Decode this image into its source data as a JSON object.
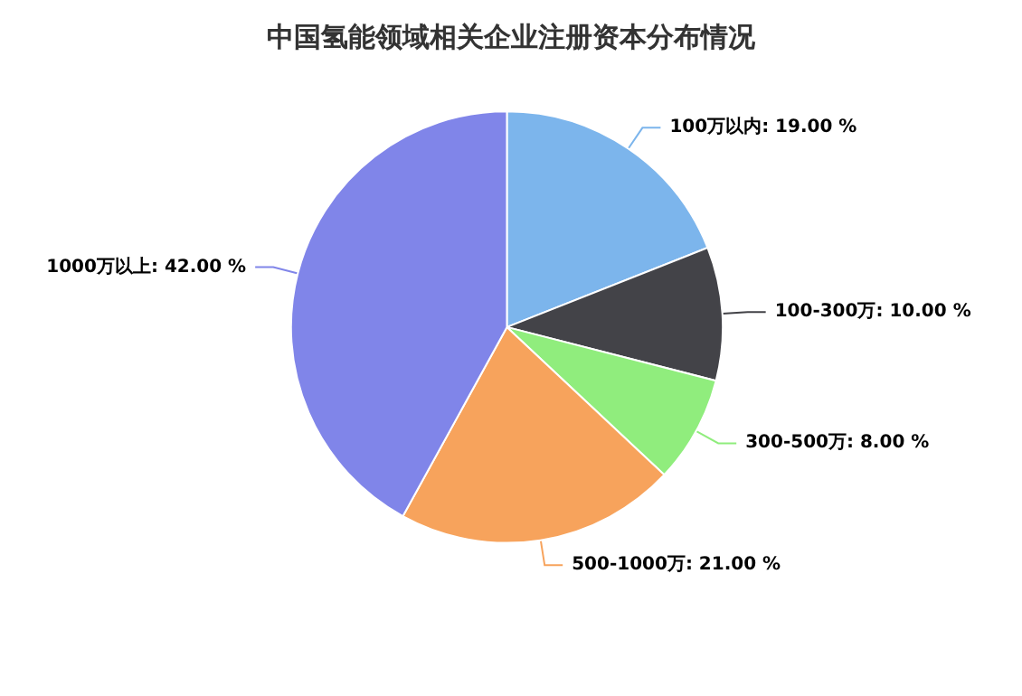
{
  "chart_data": {
    "type": "pie",
    "title": "中国氢能领域相关企业注册资本分布情况",
    "categories": [
      "100万以内",
      "100-300万",
      "300-500万",
      "500-1000万",
      "1000万以上"
    ],
    "values": [
      19,
      10,
      8,
      21,
      42
    ],
    "colors": [
      "#7cb5ec",
      "#434348",
      "#90ed7d",
      "#f7a35c",
      "#8085e9"
    ],
    "value_labels": [
      "19.00 %",
      "10.00 %",
      "8.00 %",
      "21.00 %",
      "42.00 %"
    ],
    "legend": false
  }
}
